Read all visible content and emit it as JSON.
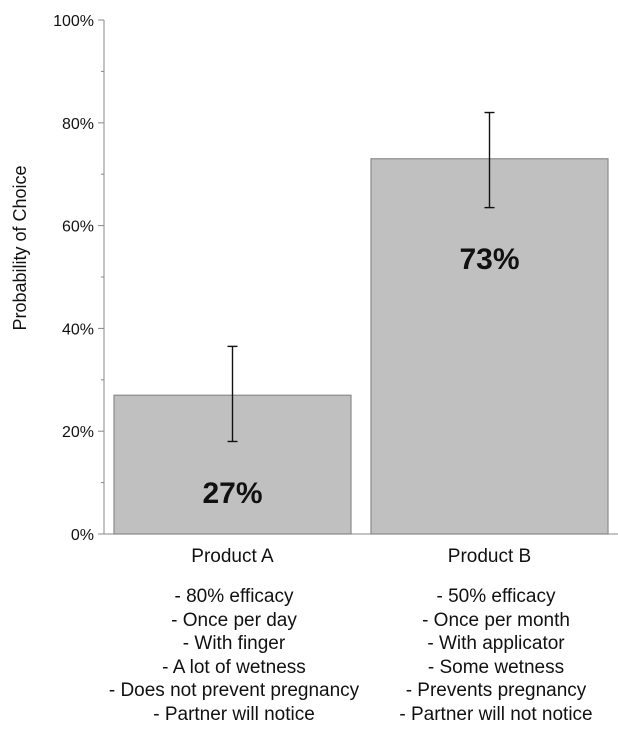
{
  "chart_data": {
    "type": "bar",
    "title": "",
    "xlabel": "",
    "ylabel": "Probability of Choice",
    "ylim": [
      0,
      100
    ],
    "yticks": [
      "0%",
      "20%",
      "40%",
      "60%",
      "80%",
      "100%"
    ],
    "ytick_values": [
      0,
      20,
      40,
      60,
      80,
      100
    ],
    "categories": [
      "Product A",
      "Product B"
    ],
    "values": [
      27,
      73
    ],
    "error_low": [
      18,
      63.5
    ],
    "error_high": [
      36.5,
      82
    ],
    "data_labels": [
      "27%",
      "73%"
    ],
    "bar_color": "#c0c0c0",
    "grid": false,
    "legend": "none"
  },
  "attributes": {
    "product_a": [
      "- 80% efficacy",
      "- Once per day",
      "- With finger",
      "- A lot of wetness",
      "- Does not prevent pregnancy",
      "- Partner will notice"
    ],
    "product_b": [
      "- 50% efficacy",
      "- Once per month",
      "- With applicator",
      "- Some wetness",
      "- Prevents pregnancy",
      "- Partner will not notice"
    ]
  }
}
